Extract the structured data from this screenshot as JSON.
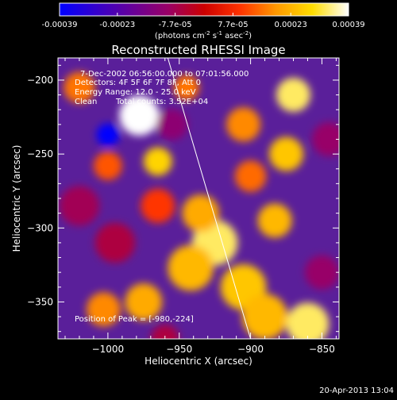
{
  "colorbar": {
    "ticks": [
      "-0.00039",
      "-0.00023",
      "-7.7e-05",
      "7.7e-05",
      "0.00023",
      "0.00039"
    ],
    "units_main": "(photons cm",
    "units_sup1": "-2",
    "units_mid": " s",
    "units_sup2": "-1",
    "units_end": " asec",
    "units_sup3": "-2",
    "units_close": ")",
    "colors": [
      "#0000ff",
      "#3300cc",
      "#660099",
      "#990066",
      "#cc0000",
      "#ff3300",
      "#ff9900",
      "#ffdd00",
      "#ffffff"
    ]
  },
  "annotations": {
    "time_range": "7-Dec-2002 06:56:00.000 to 07:01:56.000",
    "detectors": "Detectors: 4F 5F 6F 7F 8F, Att 0",
    "energy": "Energy Range: 12.0 - 25.0 keV",
    "clean_label": "Clean",
    "total_counts": "Total counts: 3.52E+04",
    "peak": "Position of Peak = [-980,-224]"
  },
  "footer": {
    "timestamp": "20-Apr-2013 13:04"
  },
  "chart_data": {
    "type": "heatmap",
    "title": "Reconstructed RHESSI Image",
    "xlabel": "Heliocentric X (arcsec)",
    "ylabel": "Heliocentric Y (arcsec)",
    "xlim": [
      -1035,
      -838
    ],
    "ylim": [
      -375,
      -185
    ],
    "x_ticks": [
      -1000,
      -950,
      -900,
      -850
    ],
    "y_ticks": [
      -200,
      -250,
      -300,
      -350
    ],
    "x_tick_labels": [
      "−1000",
      "−950",
      "−900",
      "−850"
    ],
    "y_tick_labels": [
      "−200",
      "−250",
      "−300",
      "−350"
    ],
    "value_range": [
      -0.00039,
      0.00039
    ],
    "blobs": [
      {
        "x": -978,
        "y": -224,
        "v": 0.00039,
        "r": 14
      },
      {
        "x": -925,
        "y": -310,
        "v": 0.00033,
        "r": 16
      },
      {
        "x": -942,
        "y": -327,
        "v": 0.00024,
        "r": 16
      },
      {
        "x": -905,
        "y": -340,
        "v": 0.00026,
        "r": 16
      },
      {
        "x": -890,
        "y": -360,
        "v": 0.00024,
        "r": 16
      },
      {
        "x": -860,
        "y": -365,
        "v": 0.00033,
        "r": 15
      },
      {
        "x": -965,
        "y": -255,
        "v": 0.00028,
        "r": 10
      },
      {
        "x": -975,
        "y": -350,
        "v": 0.00022,
        "r": 13
      },
      {
        "x": -1003,
        "y": -355,
        "v": 0.00018,
        "r": 12
      },
      {
        "x": -1020,
        "y": -205,
        "v": 0.00016,
        "r": 11
      },
      {
        "x": -1000,
        "y": -258,
        "v": 0.00013,
        "r": 10
      },
      {
        "x": -935,
        "y": -290,
        "v": 0.00022,
        "r": 13
      },
      {
        "x": -965,
        "y": -285,
        "v": 0.0001,
        "r": 12
      },
      {
        "x": -870,
        "y": -210,
        "v": 0.00033,
        "r": 12
      },
      {
        "x": -875,
        "y": -250,
        "v": 0.00026,
        "r": 12
      },
      {
        "x": -883,
        "y": -295,
        "v": 0.00024,
        "r": 12
      },
      {
        "x": -905,
        "y": -230,
        "v": 0.00018,
        "r": 12
      },
      {
        "x": -900,
        "y": -265,
        "v": 0.00015,
        "r": 11
      },
      {
        "x": -945,
        "y": -205,
        "v": 0.00016,
        "r": 9
      },
      {
        "x": -1000,
        "y": -237,
        "v": -0.00039,
        "r": 8
      },
      {
        "x": -955,
        "y": -230,
        "v": -0.00012,
        "r": 11
      },
      {
        "x": -1020,
        "y": -285,
        "v": -8e-05,
        "r": 14
      },
      {
        "x": -995,
        "y": -310,
        "v": -6e-05,
        "r": 14
      },
      {
        "x": -845,
        "y": -240,
        "v": -0.0001,
        "r": 12
      },
      {
        "x": -850,
        "y": -330,
        "v": -0.0001,
        "r": 12
      },
      {
        "x": -960,
        "y": -375,
        "v": -6e-05,
        "r": 10
      }
    ],
    "limb_line": [
      [
        -958,
        -185
      ],
      [
        -900,
        -375
      ]
    ]
  }
}
